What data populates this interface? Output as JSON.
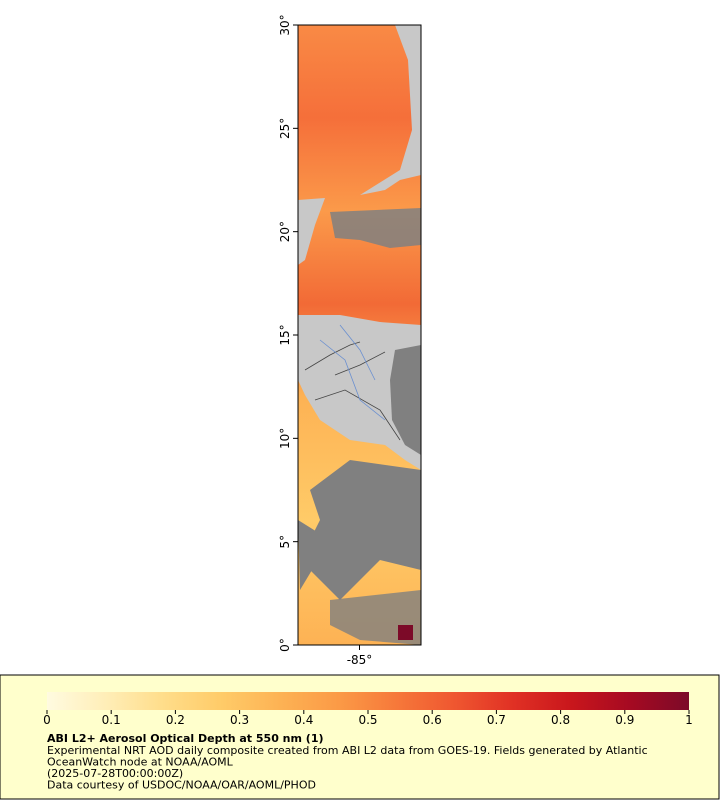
{
  "map": {
    "xlim": [
      -88,
      -82
    ],
    "ylim": [
      0,
      30
    ],
    "yticks": [
      {
        "value": 0,
        "label": "0°"
      },
      {
        "value": 5,
        "label": "5°"
      },
      {
        "value": 10,
        "label": "10°"
      },
      {
        "value": 15,
        "label": "15°"
      },
      {
        "value": 20,
        "label": "20°"
      },
      {
        "value": 25,
        "label": "25°"
      },
      {
        "value": 30,
        "label": "30°"
      }
    ],
    "xticks": [
      {
        "value": -85,
        "label": "-85°"
      }
    ]
  },
  "colorbar": {
    "title": "ABI L2+ Aerosol Optical Depth at 550 nm (1)",
    "lim": [
      0,
      1
    ],
    "ticks": [
      0,
      0.1,
      0.2,
      0.3,
      0.4,
      0.5,
      0.6,
      0.7,
      0.8,
      0.9,
      1
    ],
    "colors": [
      "#fffbe0",
      "#ffeeb8",
      "#ffdd8a",
      "#ffcb68",
      "#fdb254",
      "#fb9a46",
      "#f6783a",
      "#ef5630",
      "#e03024",
      "#c8161c",
      "#a50a22",
      "#7c0a28"
    ]
  },
  "notes": [
    "Experimental NRT AOD daily composite created from ABI L2 data from GOES-19. Fields generated by Atlantic",
    "OceanWatch node at NOAA/AOML",
    "(2025-07-28T00:00:00Z)",
    "Data courtesy of USDOC/NOAA/OAR/AOML/PHOD"
  ]
}
